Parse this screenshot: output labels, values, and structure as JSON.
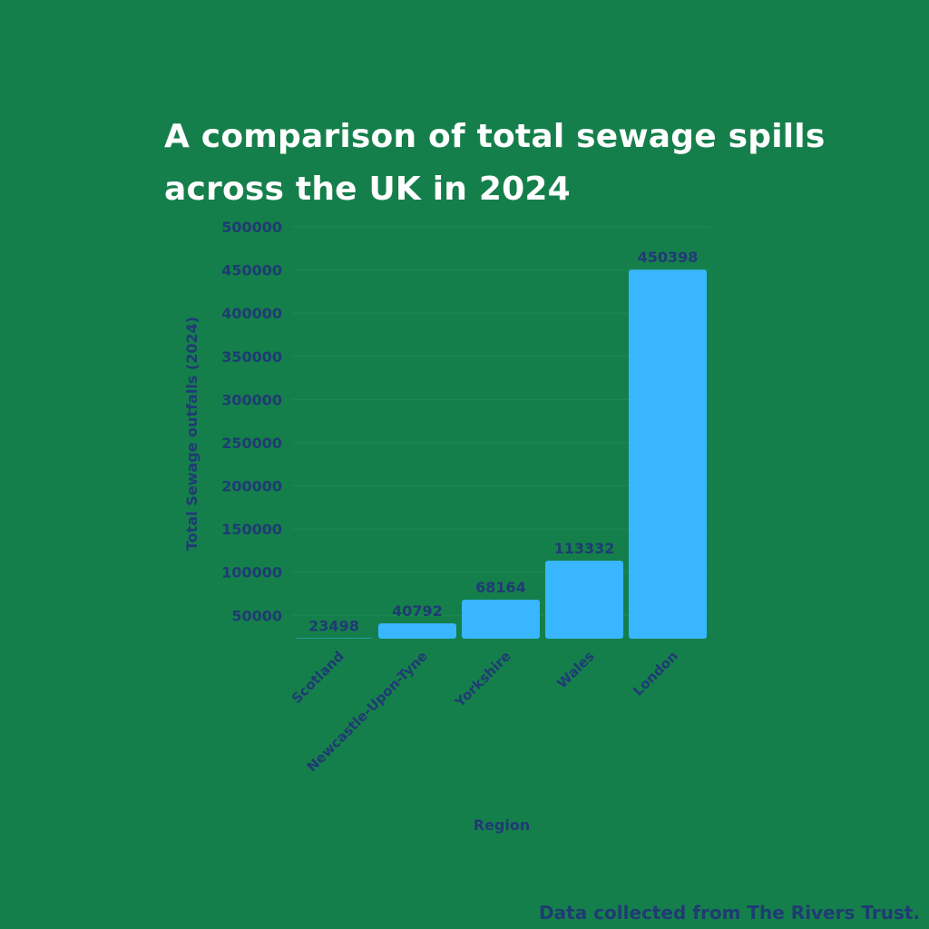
{
  "title": "A comparison of total sewage spills across the UK in 2024",
  "footer": "Data collected from The Rivers Trust.",
  "colors": {
    "background": "#157f4b",
    "bar": "#38b6ff",
    "text_dark": "#1f3b73",
    "title": "#ffffff"
  },
  "chart_data": {
    "type": "bar",
    "title": "A comparison of total sewage spills across the UK in 2024",
    "xlabel": "Region",
    "ylabel": "Total Sewage outfalls (2024)",
    "categories": [
      "Scotland",
      "Newcastle-Upon-Tyne",
      "Yorkshire",
      "Wales",
      "London"
    ],
    "values": [
      23498,
      40792,
      68164,
      113332,
      450398
    ],
    "yticks": [
      50000,
      100000,
      150000,
      200000,
      250000,
      300000,
      350000,
      400000,
      450000,
      500000
    ],
    "ylim": [
      23000,
      500000
    ],
    "grid": true,
    "legend": "none"
  }
}
